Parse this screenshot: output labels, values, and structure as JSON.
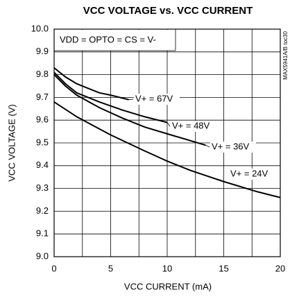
{
  "chart_data": {
    "type": "line",
    "title": "VCC VOLTAGE vs. VCC CURRENT",
    "xlabel": "VCC CURRENT (mA)",
    "ylabel": "VCC VOLTAGE (V)",
    "annotation": "VDD = OPTO = CS = V-",
    "side_label": "MAX5941A/B toc30",
    "xlim": [
      0,
      20
    ],
    "xticks": [
      0,
      5,
      10,
      15,
      20
    ],
    "ylim": [
      9.0,
      10.0
    ],
    "yticks": [
      {
        "value": 9.0,
        "label": "9.0"
      },
      9.1,
      9.2,
      9.3,
      9.4,
      9.5,
      9.6,
      9.7,
      9.8,
      9.9,
      {
        "value": 10.0,
        "label": "10.0"
      }
    ],
    "grid": true,
    "color": "#000000",
    "series": [
      {
        "name": "V+ = 67V",
        "x": [
          0,
          1,
          2,
          3,
          4,
          5,
          6.6
        ],
        "values": [
          9.83,
          9.79,
          9.76,
          9.74,
          9.72,
          9.71,
          9.69
        ]
      },
      {
        "name": "V+ = 48V",
        "x": [
          0,
          1,
          2,
          4,
          6,
          8,
          10
        ],
        "values": [
          9.81,
          9.76,
          9.72,
          9.68,
          9.645,
          9.615,
          9.59
        ]
      },
      {
        "name": "V+ = 36V",
        "x": [
          0,
          1,
          2,
          4,
          6,
          8,
          10,
          13.4
        ],
        "values": [
          9.8,
          9.75,
          9.71,
          9.655,
          9.61,
          9.57,
          9.54,
          9.49
        ]
      },
      {
        "name": "V+ = 24V",
        "x": [
          0,
          2,
          5,
          8,
          10,
          12,
          15,
          18,
          20
        ],
        "values": [
          9.68,
          9.615,
          9.535,
          9.465,
          9.42,
          9.38,
          9.33,
          9.285,
          9.26
        ]
      }
    ]
  }
}
